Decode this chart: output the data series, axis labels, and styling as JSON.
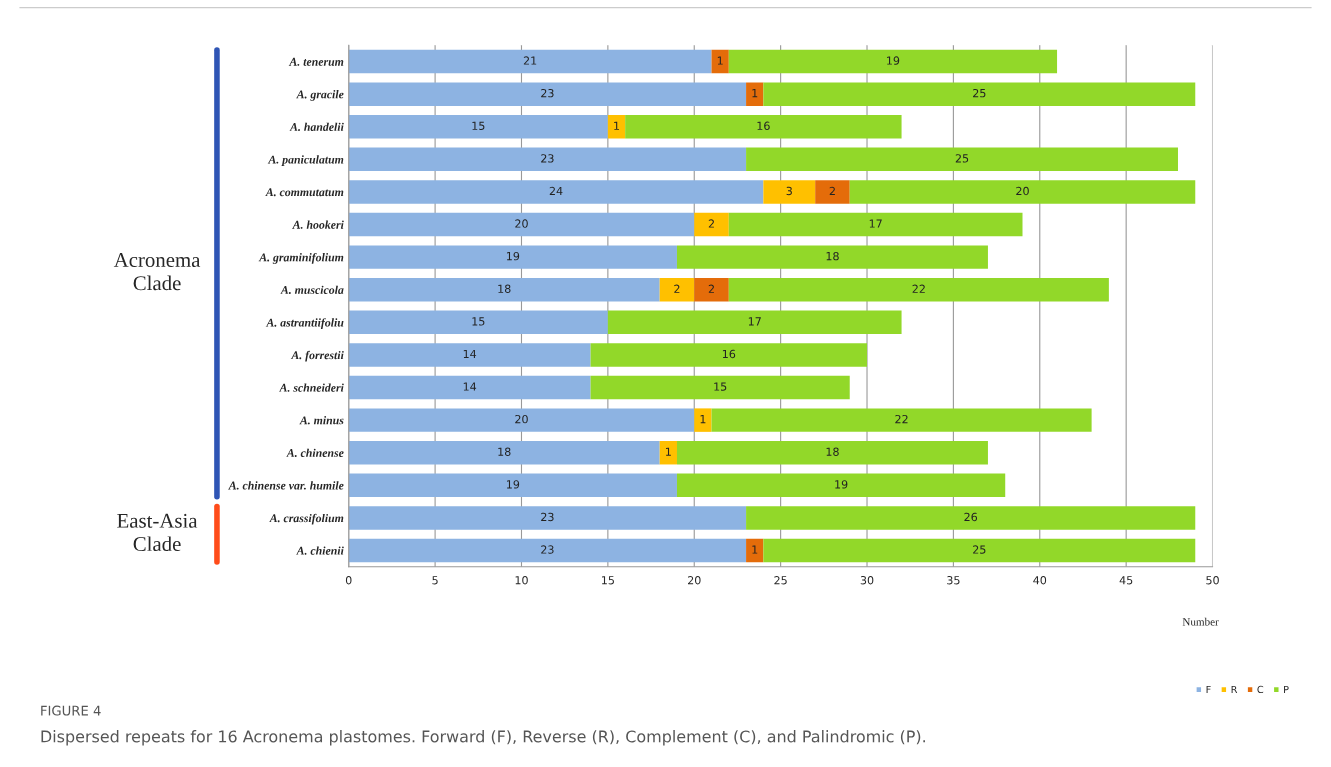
{
  "chart_data": {
    "type": "bar",
    "orientation": "horizontal",
    "stacked": true,
    "data_labels": true,
    "grid": "x",
    "legend": "bottom right",
    "xlabel": "Number",
    "categories": [
      "A. tenerum",
      "A. gracile",
      "A. handelii",
      "A. paniculatum",
      "A. commutatum",
      "A. hookeri",
      "A. graminifolium",
      "A. muscicola",
      "A. astrantiifoliu",
      "A. forrestii",
      "A. schneideri",
      "A. minus",
      "A. chinense",
      "A. chinense var. humile",
      "A. crassifolium",
      "A. chienii"
    ],
    "series": [
      {
        "name": "F",
        "color": "#8db3e2",
        "values": [
          21,
          23,
          15,
          23,
          24,
          20,
          19,
          18,
          15,
          14,
          14,
          20,
          18,
          19,
          23,
          23
        ]
      },
      {
        "name": "R",
        "color": "#ffc000",
        "values": [
          null,
          null,
          1,
          null,
          3,
          2,
          null,
          2,
          null,
          null,
          null,
          1,
          1,
          null,
          null,
          null
        ]
      },
      {
        "name": "C",
        "color": "#e46c0a",
        "values": [
          1,
          1,
          null,
          null,
          2,
          null,
          null,
          2,
          null,
          null,
          null,
          null,
          null,
          null,
          null,
          1
        ]
      },
      {
        "name": "P",
        "color": "#92d829",
        "values": [
          19,
          25,
          16,
          25,
          20,
          17,
          18,
          22,
          17,
          16,
          15,
          22,
          18,
          19,
          26,
          25
        ]
      }
    ],
    "xlim": [
      0,
      50
    ],
    "xticks": [
      0,
      5,
      10,
      15,
      20,
      25,
      30,
      35,
      40,
      45,
      50
    ],
    "annotations": [
      "Acronema Clade",
      "East-Asia Clade",
      "FIGURE 4",
      "Dispersed repeats for 16 Acronema plastomes. Forward (F), Reverse (R), Complement (C), and Palindromic (P)."
    ]
  }
}
